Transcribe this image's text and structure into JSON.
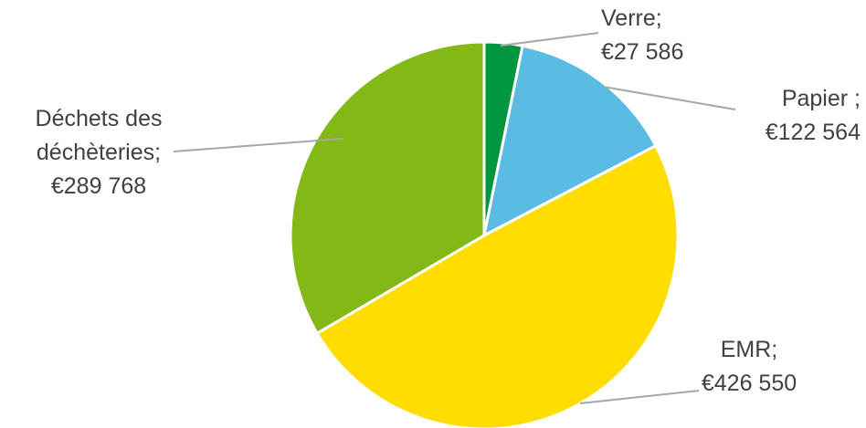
{
  "chart_data": {
    "type": "pie",
    "categories": [
      "Verre;",
      "Papier ;",
      "EMR;",
      "Déchets des déchèteries;"
    ],
    "values": [
      27586,
      122564,
      426550,
      289768
    ],
    "value_labels": [
      "€27 586",
      "€122 564",
      "€426 550",
      "€289 768"
    ],
    "colors": [
      "#00953f",
      "#5bbce3",
      "#ffdd00",
      "#84b817"
    ]
  }
}
